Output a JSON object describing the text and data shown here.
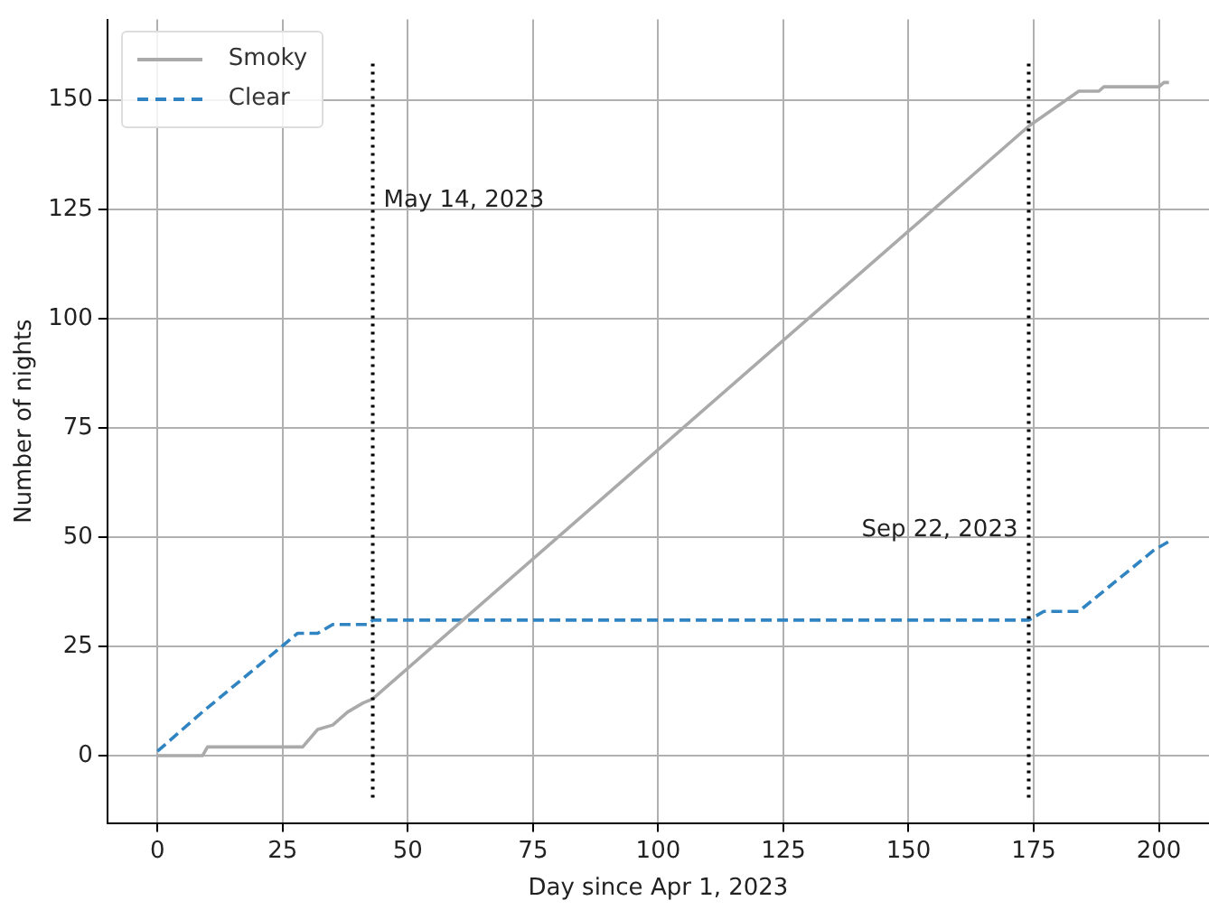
{
  "chart_data": {
    "type": "line",
    "xlabel": "Day since Apr 1, 2023",
    "ylabel": "Number of nights",
    "xlim": [
      -10,
      210
    ],
    "ylim": [
      -15.4,
      168.4
    ],
    "xticks": [
      0,
      25,
      50,
      75,
      100,
      125,
      150,
      175,
      200
    ],
    "yticks": [
      0,
      25,
      50,
      75,
      100,
      125,
      150
    ],
    "grid": true,
    "legend": "top left",
    "marker": "none",
    "series": [
      {
        "name": "Smoky",
        "color": "#aaaaaa",
        "line_style": "solid",
        "x": [
          0,
          9,
          10,
          29,
          32,
          35,
          38,
          41,
          43,
          174,
          184,
          188,
          189,
          200,
          201,
          202
        ],
        "values": [
          0,
          0,
          2,
          2,
          6,
          7,
          10,
          12,
          13,
          144,
          152,
          152,
          153,
          153,
          154,
          154
        ]
      },
      {
        "name": "Clear",
        "color": "#3184c2",
        "line_style": "dashed",
        "x": [
          0,
          9,
          28,
          32,
          35,
          42,
          43,
          174,
          177,
          184,
          199,
          202
        ],
        "values": [
          1,
          10,
          28,
          28,
          30,
          30,
          31,
          31,
          33,
          33,
          47,
          49
        ]
      }
    ],
    "ref_lines": [
      {
        "axis": "x",
        "value": 43,
        "label": "May 14, 2023",
        "color": "#000000",
        "line_style": "dotted"
      },
      {
        "axis": "x",
        "value": 174,
        "label": "Sep 22, 2023",
        "color": "#000000",
        "line_style": "dotted"
      }
    ]
  }
}
